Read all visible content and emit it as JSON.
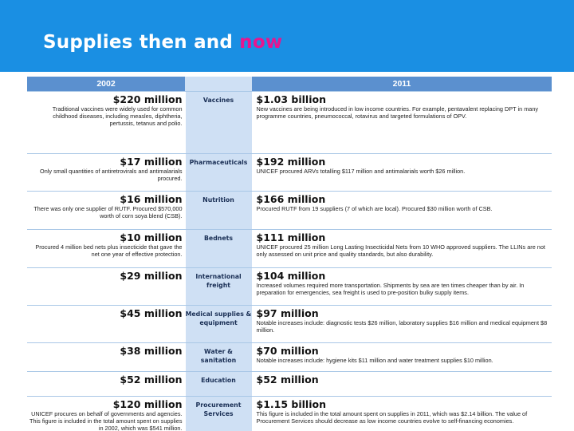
{
  "slide": {
    "title_main": "Supplies then and",
    "title_highlight": "now"
  },
  "table": {
    "header_left": "2002",
    "header_mid": "",
    "header_right": "2011",
    "rows": [
      {
        "category": "Vaccines",
        "amount_2002": "$220 million",
        "desc_2002": "Traditional vaccines were widely used for common childhood diseases, including measles, diphtheria, pertussis, tetanus and polio.",
        "amount_2011": "$1.03 billion",
        "desc_2011": "New vaccines are being introduced in low income countries. For example, pentavalent replacing DPT in many programme countries, pneumococcal, rotavirus and targeted formulations of OPV."
      },
      {
        "category": "Pharmaceuticals",
        "amount_2002": "$17 million",
        "desc_2002": "Only small quantities of antiretrovirals and antimalarials procured.",
        "amount_2011": "$192 million",
        "desc_2011": "UNICEF procured ARVs totalling $117 million and antimalarials worth $26 million."
      },
      {
        "category": "Nutrition",
        "amount_2002": "$16 million",
        "desc_2002": "There was only one supplier of RUTF. Procured $570,000 worth of corn soya blend (CSB).",
        "amount_2011": "$166 million",
        "desc_2011": "Procured RUTF from 19 suppliers (7 of which are local). Procured $30 million worth of CSB."
      },
      {
        "category": "Bednets",
        "amount_2002": "$10 million",
        "desc_2002": "Procured 4 million bed nets plus insecticide that gave the net one year of effective protection.",
        "amount_2011": "$111 million",
        "desc_2011": "UNICEF procured 25 million Long Lasting Insecticidal Nets from 10 WHO approved suppliers. The LLINs are not only assessed on unit price and quality standards, but also durability."
      },
      {
        "category": "International freight",
        "amount_2002": "$29 million",
        "desc_2002": "",
        "amount_2011": "$104 million",
        "desc_2011": "Increased volumes required more transportation. Shipments by sea are ten times cheaper than by air. In preparation for emergencies, sea freight is used to pre-position bulky supply items."
      },
      {
        "category": "Medical supplies & equipment",
        "amount_2002": "$45 million",
        "desc_2002": "",
        "amount_2011": "$97 million",
        "desc_2011": "Notable increases include: diagnostic tests $26 million, laboratory supplies $16 million and medical equipment $8 million."
      },
      {
        "category": "Water & sanitation",
        "amount_2002": "$38 million",
        "desc_2002": "",
        "amount_2011": "$70 million",
        "desc_2011": "Notable increases include: hygiene kits $11 million and water treatment supplies $10 million."
      },
      {
        "category": "Education",
        "amount_2002": "$52 million",
        "desc_2002": "",
        "amount_2011": "$52 million",
        "desc_2011": ""
      },
      {
        "category": "Procurement Services",
        "amount_2002": "$120 million",
        "desc_2002": "UNICEF procures on behalf of governments and agencies. This figure is included in the total amount spent on supplies in 2002, which was $541 million.",
        "amount_2011": "$1.15 billion",
        "desc_2011": "This figure is included in the total amount spent on supplies in 2011, which was $2.14 billion. The value of Procurement Services should decrease as low income countries evolve to self-financing economies."
      }
    ]
  }
}
